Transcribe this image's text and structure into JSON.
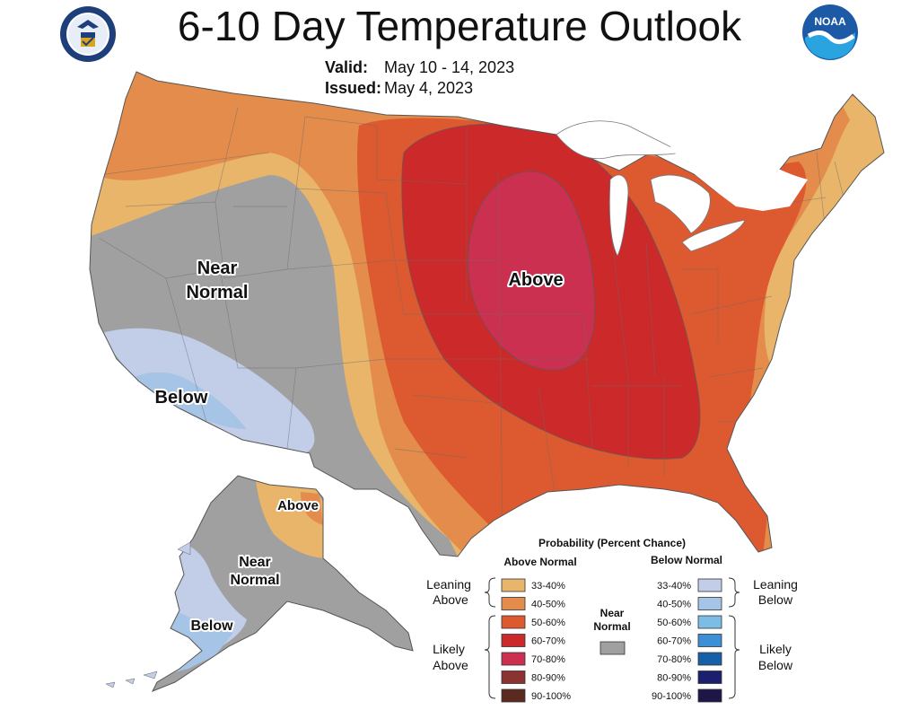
{
  "header": {
    "title": "6-10 Day Temperature Outlook",
    "valid_label": "Valid:",
    "valid_value": "May 10 - 14, 2023",
    "issued_label": "Issued:",
    "issued_value": "May 4, 2023",
    "left_logo": "department-of-commerce-seal",
    "right_logo": "noaa-logo",
    "right_logo_text": "NOAA"
  },
  "map_labels": {
    "conus_above": "Above",
    "conus_near_1": "Near",
    "conus_near_2": "Normal",
    "conus_below": "Below",
    "ak_above": "Above",
    "ak_near_1": "Near",
    "ak_near_2": "Normal",
    "ak_below": "Below"
  },
  "legend": {
    "title": "Probability (Percent Chance)",
    "above_header": "Above Normal",
    "below_header": "Below Normal",
    "near_header_1": "Near",
    "near_header_2": "Normal",
    "leaning_above_1": "Leaning",
    "leaning_above_2": "Above",
    "likely_above_1": "Likely",
    "likely_above_2": "Above",
    "leaning_below_1": "Leaning",
    "leaning_below_2": "Below",
    "likely_below_1": "Likely",
    "likely_below_2": "Below",
    "above": [
      {
        "label": "33-40%",
        "color": "#e8b56a"
      },
      {
        "label": "40-50%",
        "color": "#e38c4b"
      },
      {
        "label": "50-60%",
        "color": "#dd5a30"
      },
      {
        "label": "60-70%",
        "color": "#cc2a2a"
      },
      {
        "label": "70-80%",
        "color": "#cc3050"
      },
      {
        "label": "80-90%",
        "color": "#8b3333"
      },
      {
        "label": "90-100%",
        "color": "#5a2a20"
      }
    ],
    "below": [
      {
        "label": "33-40%",
        "color": "#c2cde8"
      },
      {
        "label": "40-50%",
        "color": "#a6c4e6"
      },
      {
        "label": "50-60%",
        "color": "#7bbde4"
      },
      {
        "label": "60-70%",
        "color": "#3d8fd6"
      },
      {
        "label": "70-80%",
        "color": "#1760a8"
      },
      {
        "label": "80-90%",
        "color": "#1b1f6e"
      },
      {
        "label": "90-100%",
        "color": "#1e1646"
      }
    ],
    "near_color": "#a0a0a0"
  },
  "colors": {
    "near_normal": "#a0a0a0",
    "lake_water": "#ffffff",
    "border": "#555555"
  }
}
